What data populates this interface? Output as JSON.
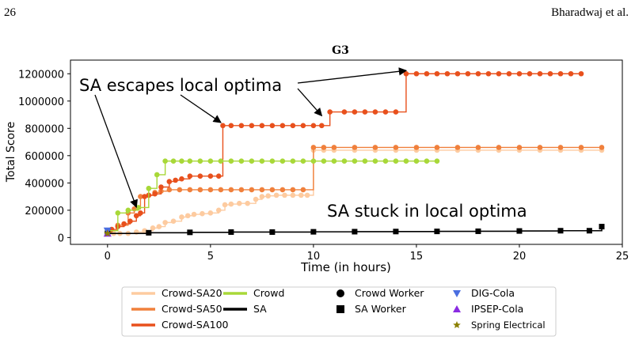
{
  "header": {
    "page_number": "26",
    "authors": "Bharadwaj et al."
  },
  "chart_data": {
    "type": "line",
    "title": "G3",
    "xlabel": "Time (in hours)",
    "ylabel": "Total Score",
    "xlim": [
      -1.8,
      25
    ],
    "ylim": [
      -50000,
      1300000
    ],
    "xticks": [
      0,
      5,
      10,
      15,
      20,
      25
    ],
    "yticks": [
      0,
      200000,
      400000,
      600000,
      800000,
      1000000,
      1200000
    ],
    "grid": false,
    "legend_position": "below",
    "series": [
      {
        "name": "Crowd-SA20",
        "color": "#fdcba0",
        "marker": "circle",
        "x": [
          0,
          0.3,
          0.6,
          1.0,
          1.4,
          1.8,
          2.2,
          2.5,
          2.8,
          3.2,
          3.6,
          3.9,
          4.2,
          4.6,
          5.0,
          5.4,
          5.7,
          6.0,
          6.4,
          6.8,
          7.2,
          7.5,
          7.8,
          8.2,
          8.6,
          9.0,
          9.4,
          9.7,
          10.0,
          10.5,
          11.0,
          12.0,
          13.0,
          14.0,
          15.0,
          16.0,
          17.0,
          18.0,
          19.0,
          20.0,
          21.0,
          22.0,
          23.0,
          24.0
        ],
        "y": [
          30000,
          30000,
          30000,
          30000,
          40000,
          50000,
          70000,
          80000,
          110000,
          120000,
          150000,
          160000,
          170000,
          175000,
          180000,
          200000,
          240000,
          245000,
          250000,
          250000,
          280000,
          300000,
          305000,
          310000,
          310000,
          310000,
          310000,
          310000,
          640000,
          640000,
          640000,
          640000,
          640000,
          640000,
          640000,
          640000,
          640000,
          640000,
          640000,
          640000,
          640000,
          640000,
          640000,
          640000
        ]
      },
      {
        "name": "Crowd-SA50",
        "color": "#f0803c",
        "marker": "circle",
        "x": [
          0,
          0.5,
          1.0,
          1.3,
          1.6,
          2.0,
          2.3,
          2.6,
          3.0,
          3.5,
          4.0,
          4.5,
          5.0,
          5.5,
          6.0,
          6.5,
          7.0,
          7.5,
          8.0,
          8.5,
          9.0,
          9.5,
          10.0,
          10.5,
          11.0,
          12.0,
          13.0,
          14.0,
          15.0,
          16.0,
          17.0,
          18.0,
          19.0,
          20.0,
          21.0,
          22.0,
          23.0,
          24.0
        ],
        "y": [
          50000,
          90000,
          180000,
          210000,
          300000,
          310000,
          330000,
          340000,
          350000,
          350000,
          350000,
          350000,
          350000,
          350000,
          350000,
          350000,
          350000,
          350000,
          350000,
          350000,
          350000,
          350000,
          660000,
          660000,
          660000,
          660000,
          660000,
          660000,
          660000,
          660000,
          660000,
          660000,
          660000,
          660000,
          660000,
          660000,
          660000,
          660000
        ]
      },
      {
        "name": "Crowd-SA100",
        "color": "#e8501c",
        "marker": "circle",
        "x": [
          0,
          0.2,
          0.5,
          0.8,
          1.1,
          1.4,
          1.6,
          1.8,
          2.0,
          2.3,
          2.6,
          3.0,
          3.3,
          3.6,
          4.0,
          4.5,
          5.0,
          5.4,
          5.6,
          6.0,
          6.5,
          7.0,
          7.5,
          8.0,
          8.5,
          9.0,
          9.5,
          10.0,
          10.4,
          10.8,
          11.5,
          12.0,
          12.5,
          13.0,
          13.5,
          14.0,
          14.5,
          15.0,
          15.5,
          16.0,
          16.5,
          17.0,
          17.5,
          18.0,
          18.5,
          19.0,
          19.5,
          20.0,
          20.5,
          21.0,
          21.5,
          22.0,
          22.5,
          23.0
        ],
        "y": [
          40000,
          60000,
          80000,
          100000,
          120000,
          160000,
          180000,
          300000,
          310000,
          320000,
          370000,
          410000,
          420000,
          430000,
          450000,
          450000,
          450000,
          450000,
          820000,
          820000,
          820000,
          820000,
          820000,
          820000,
          820000,
          820000,
          820000,
          820000,
          820000,
          920000,
          920000,
          920000,
          920000,
          920000,
          920000,
          920000,
          1200000,
          1200000,
          1200000,
          1200000,
          1200000,
          1200000,
          1200000,
          1200000,
          1200000,
          1200000,
          1200000,
          1200000,
          1200000,
          1200000,
          1200000,
          1200000,
          1200000,
          1200000
        ]
      },
      {
        "name": "Crowd",
        "color": "#a8d838",
        "marker": "circle",
        "x": [
          0,
          0.5,
          1.0,
          1.5,
          2.0,
          2.4,
          2.8,
          3.2,
          3.6,
          4.0,
          4.5,
          5.0,
          5.5,
          6.0,
          6.5,
          7.0,
          7.5,
          8.0,
          8.5,
          9.0,
          9.5,
          10.0,
          10.5,
          11.0,
          11.5,
          12.0,
          12.5,
          13.0,
          13.5,
          14.0,
          14.5,
          15.0,
          15.5,
          16.0
        ],
        "y": [
          50000,
          180000,
          200000,
          220000,
          360000,
          460000,
          560000,
          560000,
          560000,
          560000,
          560000,
          560000,
          560000,
          560000,
          560000,
          560000,
          560000,
          560000,
          560000,
          560000,
          560000,
          560000,
          560000,
          560000,
          560000,
          560000,
          560000,
          560000,
          560000,
          560000,
          560000,
          560000,
          560000,
          560000
        ]
      },
      {
        "name": "SA",
        "color": "#000000",
        "marker": "square",
        "x": [
          0,
          2,
          4,
          6,
          8,
          10,
          12,
          14,
          16,
          18,
          20,
          22,
          23.4,
          24
        ],
        "y": [
          30000,
          35000,
          38000,
          40000,
          40000,
          42000,
          43000,
          44000,
          45000,
          46000,
          48000,
          50000,
          50000,
          80000
        ]
      }
    ],
    "legend": {
      "line_entries": [
        {
          "label": "Crowd-SA20",
          "color": "#fdcba0"
        },
        {
          "label": "Crowd-SA50",
          "color": "#f0803c"
        },
        {
          "label": "Crowd-SA100",
          "color": "#e8501c"
        },
        {
          "label": "Crowd",
          "color": "#a8d838"
        },
        {
          "label": "SA",
          "color": "#000000"
        }
      ],
      "marker_entries": [
        {
          "label": "Crowd Worker",
          "marker": "circle",
          "color": "#000000"
        },
        {
          "label": "SA Worker",
          "marker": "square",
          "color": "#000000"
        },
        {
          "label": "DIG-Cola",
          "marker": "triangle-down",
          "color": "#4a6ee0"
        },
        {
          "label": "IPSEP-Cola",
          "marker": "triangle-up",
          "color": "#8a2be2"
        },
        {
          "label": "Spring Electrical",
          "marker": "star",
          "color": "#8b8000"
        }
      ]
    },
    "baselines": [
      {
        "name": "DIG-Cola",
        "x": 0,
        "y": 50000,
        "marker": "triangle-down",
        "color": "#4a6ee0"
      },
      {
        "name": "IPSEP-Cola",
        "x": 0,
        "y": 30000,
        "marker": "triangle-up",
        "color": "#8a2be2"
      },
      {
        "name": "Spring Electrical",
        "x": 0,
        "y": 30000,
        "marker": "star",
        "color": "#8b8000"
      }
    ],
    "annotations": [
      {
        "text": "SA escapes local optima",
        "arrows_to": [
          [
            1.4,
            200000
          ],
          [
            5.5,
            820000
          ],
          [
            10.4,
            870000
          ],
          [
            14.5,
            1200000
          ]
        ]
      },
      {
        "text": "SA stuck in local optima"
      }
    ]
  }
}
